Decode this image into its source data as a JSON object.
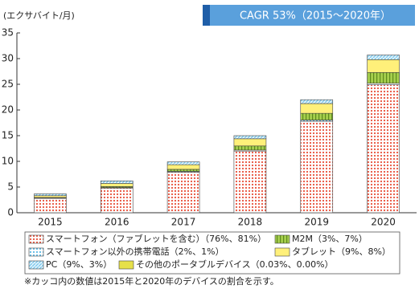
{
  "chart_data": {
    "type": "stacked_bar",
    "y_axis_label": "(エクサバイト/月)",
    "annotation": "CAGR 53%（2015～2020年）",
    "footnote": "※カッコ内の数値は2015年と2020年のデバイスの割合を示す。",
    "categories": [
      "2015",
      "2016",
      "2017",
      "2018",
      "2019",
      "2020"
    ],
    "series": [
      {
        "name": "スマートフォン（ファブレットを含む）（76%、81%）",
        "color": "#e8503a",
        "values": [
          2.8,
          4.8,
          7.9,
          12.0,
          17.8,
          24.9
        ]
      },
      {
        "name": "スマートフォン以外の携帯電話（2%、1%）",
        "color": "#5bb8e6",
        "values": [
          0.07,
          0.1,
          0.15,
          0.2,
          0.25,
          0.3
        ]
      },
      {
        "name": "M2M（3%、7%）",
        "color": "#a6cf4e",
        "values": [
          0.1,
          0.2,
          0.4,
          0.8,
          1.3,
          2.1
        ]
      },
      {
        "name": "タブレット（9%、8%）",
        "color": "#fff07a",
        "values": [
          0.35,
          0.6,
          0.9,
          1.4,
          1.9,
          2.5
        ]
      },
      {
        "name": "PC（9%、3%）",
        "color": "#7cc8ec",
        "values": [
          0.35,
          0.5,
          0.55,
          0.6,
          0.75,
          0.9
        ]
      },
      {
        "name": "その他のポータブルデバイス（0.03%、0.00%）",
        "color": "#e6e04a",
        "values": [
          0,
          0,
          0,
          0,
          0,
          0
        ]
      }
    ],
    "ylim": [
      0,
      35
    ],
    "yticks": [
      0,
      5,
      10,
      15,
      20,
      25,
      30,
      35
    ]
  }
}
